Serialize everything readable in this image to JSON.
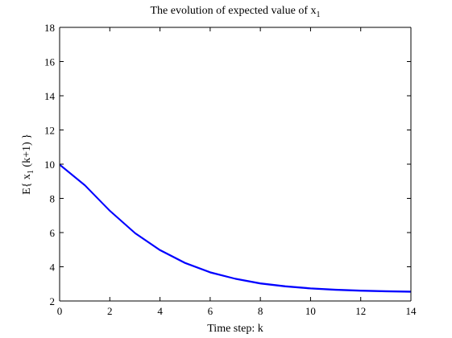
{
  "chart_data": {
    "type": "line",
    "title": "The evolution of expected value of x",
    "title_subscript": "1",
    "xlabel": "Time step: k",
    "ylabel": {
      "prefix": "E{ x",
      "subscript": "1",
      "suffix": " (k+1) }"
    },
    "xlim": [
      0,
      14
    ],
    "ylim": [
      2,
      18
    ],
    "xticks": [
      0,
      2,
      4,
      6,
      8,
      10,
      12,
      14
    ],
    "yticks": [
      2,
      4,
      6,
      8,
      10,
      12,
      14,
      16,
      18
    ],
    "grid": false,
    "line_color": "#0000ff",
    "series": [
      {
        "values": [
          [
            0,
            10.0
          ],
          [
            1,
            8.8
          ],
          [
            2,
            7.3
          ],
          [
            3,
            6.0
          ],
          [
            4,
            5.0
          ],
          [
            5,
            4.25
          ],
          [
            6,
            3.7
          ],
          [
            7,
            3.32
          ],
          [
            8,
            3.05
          ],
          [
            9,
            2.88
          ],
          [
            10,
            2.76
          ],
          [
            11,
            2.68
          ],
          [
            12,
            2.63
          ],
          [
            13,
            2.59
          ],
          [
            14,
            2.57
          ]
        ]
      },
      {
        "values": [
          [
            0,
            9.95
          ],
          [
            1,
            8.75
          ],
          [
            2,
            7.25
          ],
          [
            3,
            5.95
          ],
          [
            4,
            4.95
          ],
          [
            5,
            4.2
          ],
          [
            6,
            3.65
          ],
          [
            7,
            3.28
          ],
          [
            8,
            3.0
          ],
          [
            9,
            2.83
          ],
          [
            10,
            2.71
          ],
          [
            11,
            2.63
          ],
          [
            12,
            2.58
          ],
          [
            13,
            2.54
          ],
          [
            14,
            2.52
          ]
        ]
      }
    ]
  }
}
